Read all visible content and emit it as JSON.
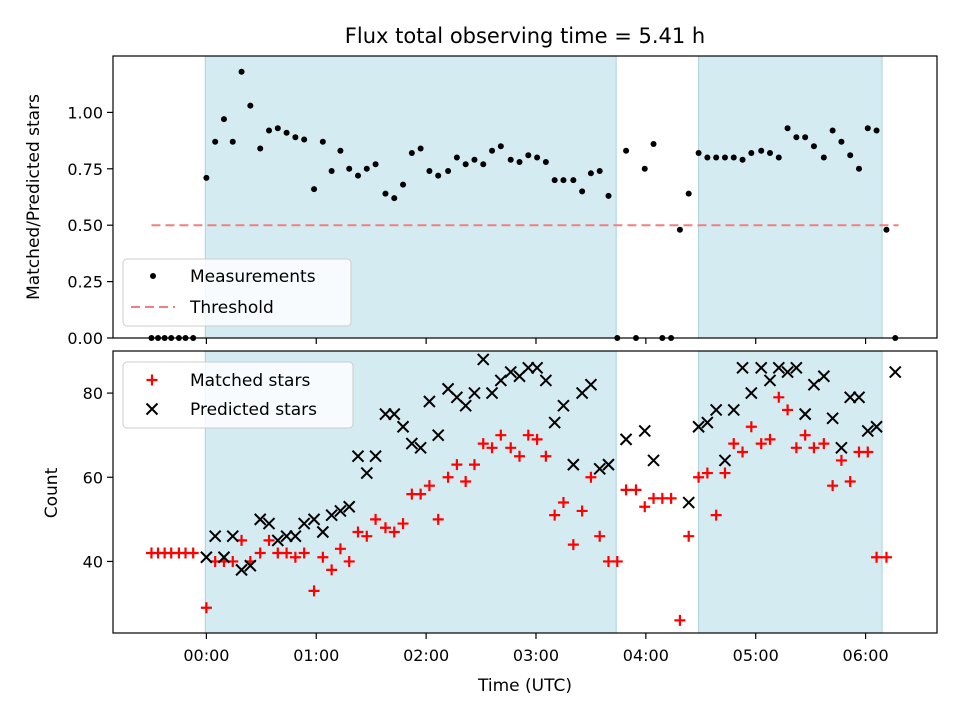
{
  "chart_data": {
    "type": "scatter",
    "title": "Flux total observing time = 5.41 h",
    "xlabel": "Time (UTC)",
    "xlim": [
      -0.85,
      6.65
    ],
    "x_ticks": [
      {
        "value": 0,
        "label": "00:00"
      },
      {
        "value": 1,
        "label": "01:00"
      },
      {
        "value": 2,
        "label": "02:00"
      },
      {
        "value": 3,
        "label": "03:00"
      },
      {
        "value": 4,
        "label": "04:00"
      },
      {
        "value": 5,
        "label": "05:00"
      },
      {
        "value": 6,
        "label": "06:00"
      }
    ],
    "shaded_intervals": [
      [
        -0.01,
        3.73
      ],
      [
        4.48,
        6.15
      ]
    ],
    "colors": {
      "shade": "#d4ebf2",
      "shade_edge": "#a9d3e0",
      "threshold": "#f08080",
      "matched": "#ff0000",
      "predicted": "#000000",
      "measurement": "#000000"
    },
    "top_panel": {
      "ylabel": "Matched/Predicted stars",
      "ylim": [
        0,
        1.25
      ],
      "y_ticks": [
        {
          "value": 0,
          "label": "0.00"
        },
        {
          "value": 0.25,
          "label": "0.25"
        },
        {
          "value": 0.5,
          "label": "0.50"
        },
        {
          "value": 0.75,
          "label": "0.75"
        },
        {
          "value": 1.0,
          "label": "1.00"
        }
      ],
      "threshold": {
        "value": 0.5,
        "x_range": [
          -0.5,
          6.3
        ]
      },
      "legend": {
        "placement": "lower-left",
        "entries": [
          "Measurements",
          "Threshold"
        ]
      },
      "measurements": [
        [
          -0.5,
          0.0
        ],
        [
          -0.44,
          0.0
        ],
        [
          -0.38,
          0.0
        ],
        [
          -0.32,
          0.0
        ],
        [
          -0.25,
          0.0
        ],
        [
          -0.19,
          0.0
        ],
        [
          -0.12,
          0.0
        ],
        [
          0.0,
          0.71
        ],
        [
          0.08,
          0.87
        ],
        [
          0.16,
          0.97
        ],
        [
          0.24,
          0.87
        ],
        [
          0.32,
          1.18
        ],
        [
          0.4,
          1.03
        ],
        [
          0.49,
          0.84
        ],
        [
          0.57,
          0.92
        ],
        [
          0.65,
          0.93
        ],
        [
          0.73,
          0.91
        ],
        [
          0.81,
          0.89
        ],
        [
          0.89,
          0.88
        ],
        [
          0.98,
          0.66
        ],
        [
          1.06,
          0.87
        ],
        [
          1.14,
          0.74
        ],
        [
          1.22,
          0.83
        ],
        [
          1.3,
          0.75
        ],
        [
          1.38,
          0.72
        ],
        [
          1.46,
          0.75
        ],
        [
          1.54,
          0.77
        ],
        [
          1.63,
          0.64
        ],
        [
          1.71,
          0.62
        ],
        [
          1.79,
          0.68
        ],
        [
          1.87,
          0.82
        ],
        [
          1.95,
          0.84
        ],
        [
          2.03,
          0.74
        ],
        [
          2.11,
          0.72
        ],
        [
          2.2,
          0.74
        ],
        [
          2.28,
          0.8
        ],
        [
          2.36,
          0.77
        ],
        [
          2.44,
          0.79
        ],
        [
          2.52,
          0.77
        ],
        [
          2.6,
          0.83
        ],
        [
          2.68,
          0.85
        ],
        [
          2.77,
          0.79
        ],
        [
          2.85,
          0.78
        ],
        [
          2.93,
          0.81
        ],
        [
          3.01,
          0.8
        ],
        [
          3.09,
          0.78
        ],
        [
          3.17,
          0.7
        ],
        [
          3.25,
          0.7
        ],
        [
          3.34,
          0.7
        ],
        [
          3.42,
          0.65
        ],
        [
          3.5,
          0.73
        ],
        [
          3.58,
          0.74
        ],
        [
          3.66,
          0.63
        ],
        [
          3.74,
          0.0
        ],
        [
          3.82,
          0.83
        ],
        [
          3.91,
          0.0
        ],
        [
          3.99,
          0.75
        ],
        [
          4.07,
          0.86
        ],
        [
          4.15,
          0.0
        ],
        [
          4.23,
          0.0
        ],
        [
          4.31,
          0.48
        ],
        [
          4.39,
          0.64
        ],
        [
          4.48,
          0.82
        ],
        [
          4.56,
          0.8
        ],
        [
          4.64,
          0.8
        ],
        [
          4.72,
          0.8
        ],
        [
          4.8,
          0.8
        ],
        [
          4.88,
          0.79
        ],
        [
          4.96,
          0.82
        ],
        [
          5.05,
          0.83
        ],
        [
          5.13,
          0.82
        ],
        [
          5.21,
          0.8
        ],
        [
          5.29,
          0.93
        ],
        [
          5.37,
          0.89
        ],
        [
          5.45,
          0.89
        ],
        [
          5.53,
          0.85
        ],
        [
          5.62,
          0.8
        ],
        [
          5.7,
          0.92
        ],
        [
          5.78,
          0.87
        ],
        [
          5.86,
          0.81
        ],
        [
          5.94,
          0.75
        ],
        [
          6.02,
          0.93
        ],
        [
          6.1,
          0.92
        ],
        [
          6.19,
          0.48
        ],
        [
          6.27,
          0.0
        ]
      ]
    },
    "bottom_panel": {
      "ylabel": "Count",
      "ylim": [
        23,
        90
      ],
      "y_ticks": [
        {
          "value": 40,
          "label": "40"
        },
        {
          "value": 60,
          "label": "60"
        },
        {
          "value": 80,
          "label": "80"
        }
      ],
      "legend": {
        "placement": "top-left",
        "entries": [
          "Matched stars",
          "Predicted stars"
        ]
      },
      "matched": [
        [
          -0.5,
          42
        ],
        [
          -0.44,
          42
        ],
        [
          -0.38,
          42
        ],
        [
          -0.32,
          42
        ],
        [
          -0.25,
          42
        ],
        [
          -0.19,
          42
        ],
        [
          -0.12,
          42
        ],
        [
          0.0,
          29
        ],
        [
          0.08,
          40
        ],
        [
          0.16,
          40
        ],
        [
          0.24,
          40
        ],
        [
          0.32,
          45
        ],
        [
          0.4,
          40
        ],
        [
          0.49,
          42
        ],
        [
          0.57,
          45
        ],
        [
          0.65,
          42
        ],
        [
          0.73,
          42
        ],
        [
          0.81,
          41
        ],
        [
          0.89,
          42
        ],
        [
          0.98,
          33
        ],
        [
          1.06,
          41
        ],
        [
          1.14,
          38
        ],
        [
          1.22,
          43
        ],
        [
          1.3,
          40
        ],
        [
          1.38,
          47
        ],
        [
          1.46,
          46
        ],
        [
          1.54,
          50
        ],
        [
          1.63,
          48
        ],
        [
          1.71,
          47
        ],
        [
          1.79,
          49
        ],
        [
          1.87,
          56
        ],
        [
          1.95,
          56
        ],
        [
          2.03,
          58
        ],
        [
          2.11,
          50
        ],
        [
          2.2,
          60
        ],
        [
          2.28,
          63
        ],
        [
          2.36,
          59
        ],
        [
          2.44,
          63
        ],
        [
          2.52,
          68
        ],
        [
          2.6,
          67
        ],
        [
          2.68,
          70
        ],
        [
          2.77,
          67
        ],
        [
          2.85,
          65
        ],
        [
          2.93,
          70
        ],
        [
          3.01,
          69
        ],
        [
          3.09,
          65
        ],
        [
          3.17,
          51
        ],
        [
          3.25,
          54
        ],
        [
          3.34,
          44
        ],
        [
          3.42,
          52
        ],
        [
          3.5,
          60
        ],
        [
          3.58,
          46
        ],
        [
          3.66,
          40
        ],
        [
          3.74,
          40
        ],
        [
          3.82,
          57
        ],
        [
          3.91,
          57
        ],
        [
          3.99,
          53
        ],
        [
          4.07,
          55
        ],
        [
          4.15,
          55
        ],
        [
          4.23,
          55
        ],
        [
          4.31,
          26
        ],
        [
          4.39,
          46
        ],
        [
          4.48,
          60
        ],
        [
          4.56,
          61
        ],
        [
          4.64,
          51
        ],
        [
          4.72,
          61
        ],
        [
          4.8,
          68
        ],
        [
          4.88,
          66
        ],
        [
          4.96,
          72
        ],
        [
          5.05,
          68
        ],
        [
          5.13,
          69
        ],
        [
          5.21,
          79
        ],
        [
          5.29,
          76
        ],
        [
          5.37,
          67
        ],
        [
          5.45,
          70
        ],
        [
          5.53,
          67
        ],
        [
          5.62,
          68
        ],
        [
          5.7,
          58
        ],
        [
          5.78,
          64
        ],
        [
          5.86,
          59
        ],
        [
          5.94,
          66
        ],
        [
          6.02,
          66
        ],
        [
          6.1,
          41
        ],
        [
          6.19,
          41
        ]
      ],
      "predicted": [
        [
          0.0,
          41
        ],
        [
          0.08,
          46
        ],
        [
          0.16,
          41
        ],
        [
          0.24,
          46
        ],
        [
          0.32,
          38
        ],
        [
          0.4,
          39
        ],
        [
          0.49,
          50
        ],
        [
          0.57,
          49
        ],
        [
          0.65,
          45
        ],
        [
          0.73,
          46
        ],
        [
          0.81,
          46
        ],
        [
          0.89,
          49
        ],
        [
          0.98,
          50
        ],
        [
          1.06,
          47
        ],
        [
          1.14,
          51
        ],
        [
          1.22,
          52
        ],
        [
          1.3,
          53
        ],
        [
          1.38,
          65
        ],
        [
          1.46,
          61
        ],
        [
          1.54,
          65
        ],
        [
          1.63,
          75
        ],
        [
          1.71,
          75
        ],
        [
          1.79,
          72
        ],
        [
          1.87,
          68
        ],
        [
          1.95,
          67
        ],
        [
          2.03,
          78
        ],
        [
          2.11,
          70
        ],
        [
          2.2,
          81
        ],
        [
          2.28,
          79
        ],
        [
          2.36,
          77
        ],
        [
          2.44,
          80
        ],
        [
          2.52,
          88
        ],
        [
          2.6,
          80
        ],
        [
          2.68,
          83
        ],
        [
          2.77,
          85
        ],
        [
          2.85,
          84
        ],
        [
          2.93,
          86
        ],
        [
          3.01,
          86
        ],
        [
          3.09,
          83
        ],
        [
          3.17,
          73
        ],
        [
          3.25,
          77
        ],
        [
          3.34,
          63
        ],
        [
          3.42,
          80
        ],
        [
          3.5,
          82
        ],
        [
          3.58,
          62
        ],
        [
          3.66,
          63
        ],
        [
          3.82,
          69
        ],
        [
          3.99,
          71
        ],
        [
          4.07,
          64
        ],
        [
          4.39,
          54
        ],
        [
          4.48,
          72
        ],
        [
          4.56,
          73
        ],
        [
          4.64,
          76
        ],
        [
          4.72,
          64
        ],
        [
          4.8,
          76
        ],
        [
          4.88,
          86
        ],
        [
          4.96,
          80
        ],
        [
          5.05,
          86
        ],
        [
          5.13,
          83
        ],
        [
          5.21,
          86
        ],
        [
          5.29,
          85
        ],
        [
          5.37,
          86
        ],
        [
          5.45,
          75
        ],
        [
          5.53,
          82
        ],
        [
          5.62,
          84
        ],
        [
          5.7,
          74
        ],
        [
          5.78,
          67
        ],
        [
          5.86,
          79
        ],
        [
          5.94,
          79
        ],
        [
          6.02,
          71
        ],
        [
          6.1,
          72
        ],
        [
          6.27,
          85
        ]
      ]
    }
  }
}
